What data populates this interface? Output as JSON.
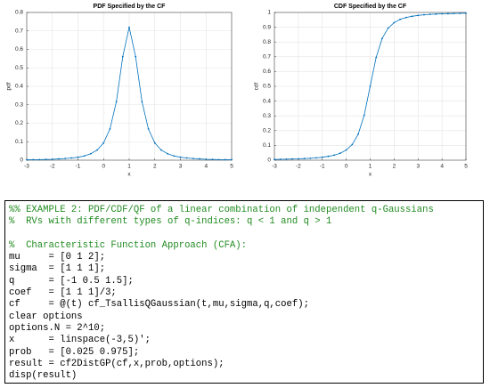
{
  "chart_data": [
    {
      "type": "line",
      "title": "PDF Specified by the CF",
      "x_label": "x",
      "y_label": "pdf",
      "x": [
        -3,
        -2.75,
        -2.5,
        -2.25,
        -2,
        -1.75,
        -1.5,
        -1.25,
        -1,
        -0.75,
        -0.5,
        -0.25,
        0,
        0.25,
        0.5,
        0.75,
        1,
        1.25,
        1.5,
        1.75,
        2,
        2.25,
        2.5,
        2.75,
        3,
        3.25,
        3.5,
        3.75,
        4,
        4.25,
        4.5,
        4.75,
        5
      ],
      "series": [
        {
          "color": "#0072bd",
          "values": [
            0.002,
            0.003,
            0.003,
            0.004,
            0.005,
            0.007,
            0.009,
            0.012,
            0.016,
            0.023,
            0.035,
            0.055,
            0.093,
            0.169,
            0.317,
            0.561,
            0.72,
            0.561,
            0.317,
            0.169,
            0.093,
            0.055,
            0.035,
            0.023,
            0.016,
            0.012,
            0.009,
            0.007,
            0.005,
            0.004,
            0.003,
            0.003,
            0.002
          ]
        }
      ],
      "xlim": [
        -3,
        5
      ],
      "xticks": [
        -3,
        -2,
        -1,
        0,
        1,
        2,
        3,
        4,
        5
      ],
      "ylim": [
        0,
        0.8
      ],
      "yticks": [
        0,
        0.1,
        0.2,
        0.3,
        0.4,
        0.5,
        0.6,
        0.7,
        0.8
      ],
      "grid": true
    },
    {
      "type": "line",
      "title": "CDF Specified by the CF",
      "x_label": "x",
      "y_label": "cdf",
      "x": [
        -3,
        -2.75,
        -2.5,
        -2.25,
        -2,
        -1.75,
        -1.5,
        -1.25,
        -1,
        -0.75,
        -0.5,
        -0.25,
        0,
        0.25,
        0.5,
        0.75,
        1,
        1.25,
        1.5,
        1.75,
        2,
        2.25,
        2.5,
        2.75,
        3,
        3.25,
        3.5,
        3.75,
        4,
        4.25,
        4.5,
        4.75,
        5
      ],
      "series": [
        {
          "color": "#0072bd",
          "values": [
            0.005,
            0.006,
            0.007,
            0.008,
            0.009,
            0.011,
            0.013,
            0.016,
            0.02,
            0.026,
            0.034,
            0.047,
            0.069,
            0.106,
            0.176,
            0.304,
            0.5,
            0.696,
            0.824,
            0.894,
            0.931,
            0.953,
            0.966,
            0.974,
            0.98,
            0.984,
            0.987,
            0.989,
            0.991,
            0.992,
            0.993,
            0.994,
            0.995
          ]
        }
      ],
      "xlim": [
        -3,
        5
      ],
      "xticks": [
        -3,
        -2,
        -1,
        0,
        1,
        2,
        3,
        4,
        5
      ],
      "ylim": [
        0,
        1
      ],
      "yticks": [
        0,
        0.1,
        0.2,
        0.3,
        0.4,
        0.5,
        0.6,
        0.7,
        0.8,
        0.9,
        1
      ],
      "grid": true
    }
  ],
  "code": {
    "lines": [
      "%% EXAMPLE 2: PDF/CDF/QF of a linear combination of independent q-Gaussians",
      "%  RVs with different types of q-indices: q < 1 and q > 1",
      "%  Characteristic Function Approach (CFA):",
      "mu     = [0 1 2];",
      "sigma  = [1 1 1];",
      "q      = [-1 0.5 1.5];",
      "coef   = [1 1 1]/3;",
      "cf     = @(t) cf_TsallisQGaussian(t,mu,sigma,q,coef);",
      "clear options",
      "options.N = 2^10;",
      "x      = linspace(-3,5)';",
      "prob   = [0.025 0.975];",
      "result = cf2DistGP(cf,x,prob,options);",
      "disp(result)"
    ]
  }
}
